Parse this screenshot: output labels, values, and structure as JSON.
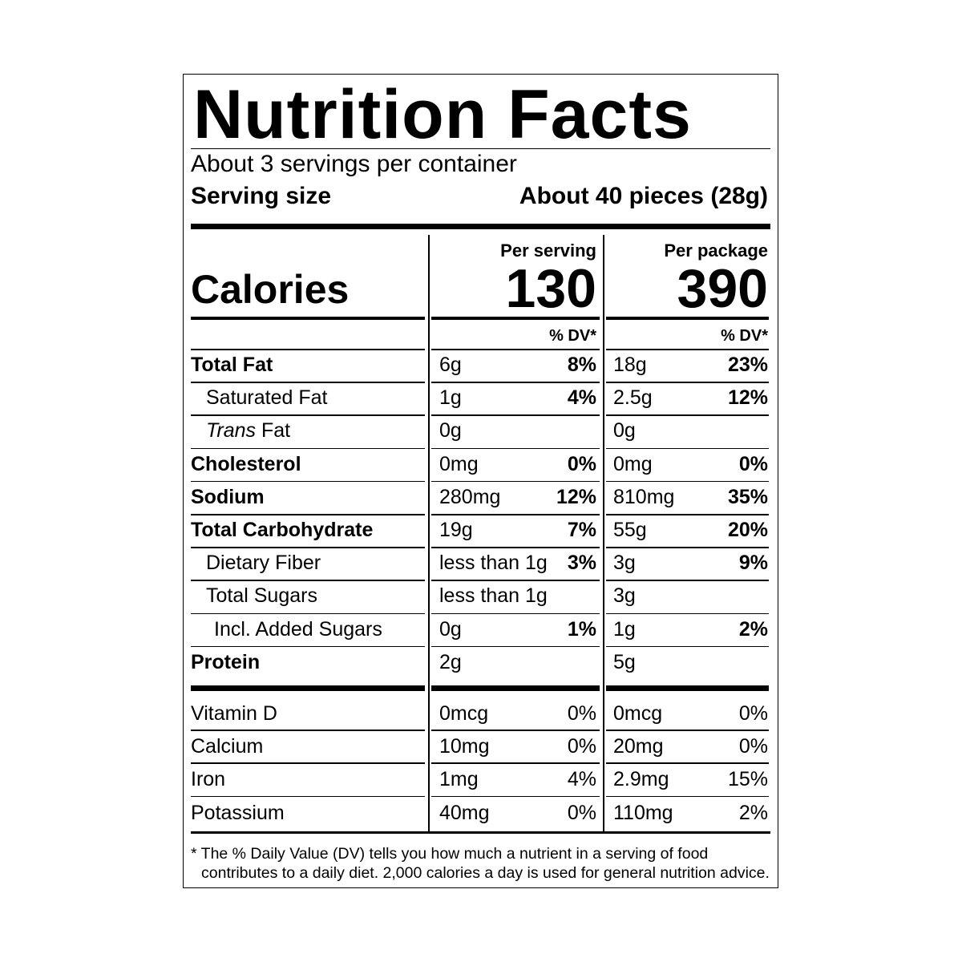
{
  "title": "Nutrition Facts",
  "servings_per_container": "About 3 servings per container",
  "serving_size_label": "Serving size",
  "serving_size_value": "About 40 pieces (28g)",
  "calories_label": "Calories",
  "columns": [
    {
      "header": "Per serving",
      "calories": "130",
      "dv_header": "% DV*"
    },
    {
      "header": "Per package",
      "calories": "390",
      "dv_header": "% DV*"
    }
  ],
  "nutrients": [
    {
      "name": "Total Fat",
      "bold": true,
      "indent": 0,
      "values": [
        {
          "amount": "6g",
          "dv": "8%"
        },
        {
          "amount": "18g",
          "dv": "23%"
        }
      ]
    },
    {
      "name": "Saturated Fat",
      "bold": false,
      "indent": 1,
      "values": [
        {
          "amount": "1g",
          "dv": "4%"
        },
        {
          "amount": "2.5g",
          "dv": "12%"
        }
      ]
    },
    {
      "name_italic": "Trans",
      "name": " Fat",
      "bold": false,
      "indent": 1,
      "values": [
        {
          "amount": "0g",
          "dv": ""
        },
        {
          "amount": "0g",
          "dv": ""
        }
      ]
    },
    {
      "name": "Cholesterol",
      "bold": true,
      "indent": 0,
      "values": [
        {
          "amount": "0mg",
          "dv": "0%"
        },
        {
          "amount": "0mg",
          "dv": "0%"
        }
      ]
    },
    {
      "name": "Sodium",
      "bold": true,
      "indent": 0,
      "values": [
        {
          "amount": "280mg",
          "dv": "12%"
        },
        {
          "amount": "810mg",
          "dv": "35%"
        }
      ]
    },
    {
      "name": "Total Carbohydrate",
      "bold": true,
      "indent": 0,
      "values": [
        {
          "amount": "19g",
          "dv": "7%"
        },
        {
          "amount": "55g",
          "dv": "20%"
        }
      ]
    },
    {
      "name": "Dietary Fiber",
      "bold": false,
      "indent": 1,
      "values": [
        {
          "amount": "less than 1g",
          "dv": "3%"
        },
        {
          "amount": "3g",
          "dv": "9%"
        }
      ]
    },
    {
      "name": "Total Sugars",
      "bold": false,
      "indent": 1,
      "values": [
        {
          "amount": "less than 1g",
          "dv": ""
        },
        {
          "amount": "3g",
          "dv": ""
        }
      ]
    },
    {
      "name": "Incl. Added Sugars",
      "bold": false,
      "indent": 2,
      "values": [
        {
          "amount": "0g",
          "dv": "1%"
        },
        {
          "amount": "1g",
          "dv": "2%"
        }
      ]
    },
    {
      "name": "Protein",
      "bold": true,
      "indent": 0,
      "values": [
        {
          "amount": "2g",
          "dv": ""
        },
        {
          "amount": "5g",
          "dv": ""
        }
      ]
    }
  ],
  "micros": [
    {
      "name": "Vitamin D",
      "values": [
        {
          "amount": "0mcg",
          "dv": "0%"
        },
        {
          "amount": "0mcg",
          "dv": "0%"
        }
      ]
    },
    {
      "name": "Calcium",
      "values": [
        {
          "amount": "10mg",
          "dv": "0%"
        },
        {
          "amount": "20mg",
          "dv": "0%"
        }
      ]
    },
    {
      "name": "Iron",
      "values": [
        {
          "amount": "1mg",
          "dv": "4%"
        },
        {
          "amount": "2.9mg",
          "dv": "15%"
        }
      ]
    },
    {
      "name": "Potassium",
      "values": [
        {
          "amount": "40mg",
          "dv": "0%"
        },
        {
          "amount": "110mg",
          "dv": "2%"
        }
      ]
    }
  ],
  "footnote_line1": "* The % Daily Value (DV) tells you how much a nutrient in a serving of food",
  "footnote_line2": "contributes to a daily diet. 2,000 calories a day is used for general nutrition advice."
}
